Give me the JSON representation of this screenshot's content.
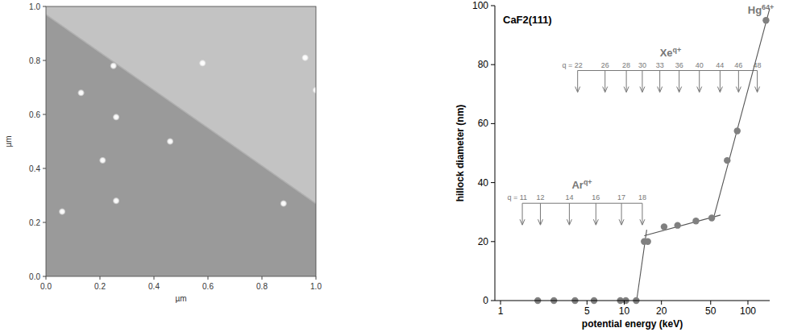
{
  "chart_data": [
    {
      "type": "image",
      "x_label": "µm",
      "y_label": "µm",
      "xlim": [
        0,
        1
      ],
      "ylim": [
        0,
        1
      ],
      "xticks": [
        {
          "value": 0,
          "label": "0.0"
        },
        {
          "value": 0.2,
          "label": "0.2"
        },
        {
          "value": 0.4,
          "label": "0.4"
        },
        {
          "value": 0.6,
          "label": "0.6"
        },
        {
          "value": 0.8,
          "label": "0.8"
        },
        {
          "value": 1,
          "label": "1.0"
        }
      ],
      "yticks": [
        {
          "value": 0,
          "label": "0.0"
        },
        {
          "value": 0.2,
          "label": "0.2"
        },
        {
          "value": 0.4,
          "label": "0.4"
        },
        {
          "value": 0.6,
          "label": "0.6"
        },
        {
          "value": 0.8,
          "label": "0.8"
        },
        {
          "value": 1,
          "label": "1.0"
        }
      ],
      "x": [
        0.13,
        0.25,
        0.26,
        0.21,
        0.06,
        0.26,
        0.46,
        0.58,
        0.88,
        0.96,
        1.0
      ],
      "values": [
        0.68,
        0.78,
        0.59,
        0.43,
        0.24,
        0.28,
        0.5,
        0.79,
        0.27,
        0.81,
        0.69
      ],
      "color": "#ffffff",
      "marker": "circle",
      "step": {
        "x": [
          0,
          1
        ],
        "values": [
          0.97,
          0.27
        ]
      }
    },
    {
      "type": "scatter",
      "title": "CaF2(111)",
      "x_label": "potential energy (keV)",
      "y_label": "hillock diameter (nm)",
      "log": "x",
      "xlim": [
        0.9,
        150
      ],
      "ylim": [
        0,
        100
      ],
      "xticks": [
        1,
        5,
        10,
        20,
        50,
        100
      ],
      "yticks": [
        0,
        20,
        40,
        60,
        80,
        100
      ],
      "x": [
        2,
        2.7,
        4,
        5.7,
        9.3,
        10.3,
        12.5,
        14.5,
        15.5,
        21,
        27,
        38,
        51,
        68,
        82,
        140
      ],
      "values": [
        0,
        0,
        0,
        0,
        0,
        0,
        0,
        20,
        20,
        25,
        25.5,
        27,
        28,
        47.5,
        57.5,
        95
      ],
      "color": "#808080",
      "marker": "circle",
      "fits": [
        {
          "x": [
            12.6,
            15.2
          ],
          "values": [
            0,
            24
          ]
        },
        {
          "x": [
            14.5,
            60
          ],
          "values": [
            22,
            29
          ]
        },
        {
          "x": [
            52,
            150
          ],
          "values": [
            27,
            99
          ]
        }
      ],
      "ions": [
        {
          "label": "Xe",
          "superscript": "q+",
          "y": 78,
          "x": [
            4.2,
            7.0,
            10.4,
            14.0,
            19.4,
            27.8,
            40.5,
            59.5,
            84,
            119
          ],
          "q": [
            {
              "value": 22,
              "label": "q = 22"
            },
            26,
            28,
            30,
            33,
            36,
            40,
            44,
            46,
            48
          ]
        },
        {
          "label": "Ar",
          "superscript": "q+",
          "y": 33,
          "x": [
            1.5,
            2.1,
            3.6,
            5.9,
            9.5,
            14
          ],
          "q": [
            {
              "value": 11,
              "label": "q = 11"
            },
            12,
            14,
            16,
            17,
            18
          ]
        }
      ],
      "annotations": [
        {
          "text": "Hg",
          "superscript": "64+",
          "x": 140,
          "y": 95
        }
      ]
    }
  ]
}
